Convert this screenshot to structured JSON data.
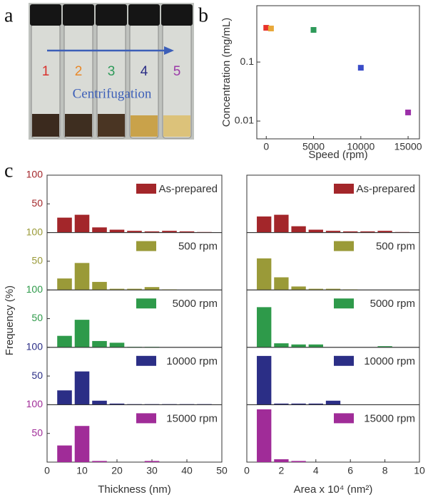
{
  "figure": {
    "panel_labels": [
      "a",
      "b",
      "c"
    ],
    "vial_labels": [
      "1",
      "2",
      "3",
      "4",
      "5"
    ],
    "vial_label_colors": [
      "#d9302c",
      "#e8892a",
      "#2e9a5a",
      "#2b2e86",
      "#9b3aa8"
    ],
    "arrow_text": "Centrifugation",
    "y_label": "Frequency (%)"
  },
  "chart_data": [
    {
      "type": "scatter",
      "x_label": "Speed (rpm)",
      "y_label": "Concentration (mg/mL)",
      "log_y": true,
      "x": [
        0,
        500,
        5000,
        10000,
        15000
      ],
      "values": [
        0.38,
        0.37,
        0.35,
        0.08,
        0.014
      ],
      "colors": [
        "#e8322c",
        "#e8a83a",
        "#2e9a5a",
        "#3a4cc8",
        "#9b2fa8"
      ],
      "xlim": [
        -1000,
        16200
      ],
      "xticks": [
        0,
        5000,
        10000,
        15000
      ],
      "ylim": [
        0.005,
        0.9
      ],
      "yticks": [
        0.01,
        0.1
      ]
    },
    {
      "type": "histogram",
      "bins": [
        2.5,
        7.5,
        12.5,
        17.5,
        22.5,
        27.5,
        32.5,
        37.5,
        42.5,
        47.5
      ],
      "series": [
        {
          "name": "As-prepared",
          "color": "#a3262a",
          "values": [
            26,
            31,
            9,
            5,
            3,
            2,
            3,
            2,
            1
          ]
        }
      ],
      "xlim": [
        0,
        50
      ],
      "ylim": [
        0,
        100
      ],
      "yticks": [
        50,
        100
      ]
    },
    {
      "type": "histogram",
      "bins": [
        2.5,
        7.5,
        12.5,
        17.5,
        22.5,
        27.5,
        32.5,
        37.5,
        42.5,
        47.5
      ],
      "series": [
        {
          "name": "500 rpm",
          "color": "#9a9a38",
          "values": [
            20,
            47,
            14,
            2,
            2,
            5,
            1,
            0,
            0
          ]
        }
      ],
      "xlim": [
        0,
        50
      ],
      "ylim": [
        0,
        100
      ],
      "yticks": [
        50,
        100
      ]
    },
    {
      "type": "histogram",
      "bins": [
        2.5,
        7.5,
        12.5,
        17.5,
        22.5,
        27.5,
        32.5,
        37.5,
        42.5,
        47.5
      ],
      "series": [
        {
          "name": "5000 rpm",
          "color": "#2e9a4a",
          "values": [
            20,
            48,
            11,
            8,
            1,
            1,
            0,
            0,
            0
          ]
        }
      ],
      "xlim": [
        0,
        50
      ],
      "ylim": [
        0,
        100
      ],
      "yticks": [
        50,
        100
      ]
    },
    {
      "type": "histogram",
      "bins": [
        2.5,
        7.5,
        12.5,
        17.5,
        22.5,
        27.5,
        32.5,
        37.5,
        42.5,
        47.5
      ],
      "series": [
        {
          "name": "10000 rpm",
          "color": "#2b2e86",
          "values": [
            25,
            58,
            7,
            2,
            1,
            1,
            1,
            1,
            1
          ]
        }
      ],
      "xlim": [
        0,
        50
      ],
      "ylim": [
        0,
        100
      ],
      "yticks": [
        50,
        100
      ]
    },
    {
      "type": "histogram",
      "bins": [
        2.5,
        7.5,
        12.5,
        17.5,
        22.5,
        27.5,
        32.5,
        37.5,
        42.5,
        47.5
      ],
      "series": [
        {
          "name": "15000 rpm",
          "color": "#a02c98",
          "values": [
            29,
            63,
            2,
            0,
            0,
            2,
            0,
            0,
            0
          ]
        }
      ],
      "xlim": [
        0,
        50
      ],
      "ylim": [
        0,
        100
      ],
      "yticks": [
        50,
        100
      ],
      "x_label": "Thickness (nm)",
      "xticks": [
        0,
        10,
        20,
        30,
        40,
        50
      ]
    },
    {
      "type": "histogram",
      "bins": [
        0.5,
        1.5,
        2.5,
        3.5,
        4.5,
        5.5,
        6.5,
        7.5,
        8.5,
        9.5
      ],
      "series": [
        {
          "name": "As-prepared",
          "color": "#a3262a",
          "values": [
            28,
            31,
            11,
            5,
            3,
            2,
            2,
            3,
            1
          ]
        }
      ],
      "xlim": [
        0,
        10
      ],
      "ylim": [
        0,
        100
      ]
    },
    {
      "type": "histogram",
      "bins": [
        0.5,
        1.5,
        2.5,
        3.5,
        4.5,
        5.5,
        6.5,
        7.5,
        8.5,
        9.5
      ],
      "series": [
        {
          "name": "500 rpm",
          "color": "#9a9a38",
          "values": [
            55,
            22,
            6,
            2,
            2,
            1,
            0,
            0,
            0
          ]
        }
      ],
      "xlim": [
        0,
        10
      ],
      "ylim": [
        0,
        100
      ]
    },
    {
      "type": "histogram",
      "bins": [
        0.5,
        1.5,
        2.5,
        3.5,
        4.5,
        5.5,
        6.5,
        7.5,
        8.5,
        9.5
      ],
      "series": [
        {
          "name": "5000 rpm",
          "color": "#2e9a4a",
          "values": [
            70,
            7,
            5,
            5,
            0,
            0,
            0,
            2,
            0
          ]
        }
      ],
      "xlim": [
        0,
        10
      ],
      "ylim": [
        0,
        100
      ]
    },
    {
      "type": "histogram",
      "bins": [
        0.5,
        1.5,
        2.5,
        3.5,
        4.5,
        5.5,
        6.5,
        7.5,
        8.5,
        9.5
      ],
      "series": [
        {
          "name": "10000 rpm",
          "color": "#2b2e86",
          "values": [
            85,
            2,
            2,
            2,
            7,
            0,
            0,
            0,
            0
          ]
        }
      ],
      "xlim": [
        0,
        10
      ],
      "ylim": [
        0,
        100
      ]
    },
    {
      "type": "histogram",
      "bins": [
        0.5,
        1.5,
        2.5,
        3.5,
        4.5,
        5.5,
        6.5,
        7.5,
        8.5,
        9.5
      ],
      "series": [
        {
          "name": "15000 rpm",
          "color": "#a02c98",
          "values": [
            92,
            5,
            2,
            0,
            0,
            0,
            0,
            0,
            0
          ]
        }
      ],
      "xlim": [
        0,
        10
      ],
      "ylim": [
        0,
        100
      ],
      "x_label": "Area x 10⁴ (nm²)",
      "xticks": [
        0,
        2,
        4,
        6,
        8,
        10
      ]
    }
  ]
}
